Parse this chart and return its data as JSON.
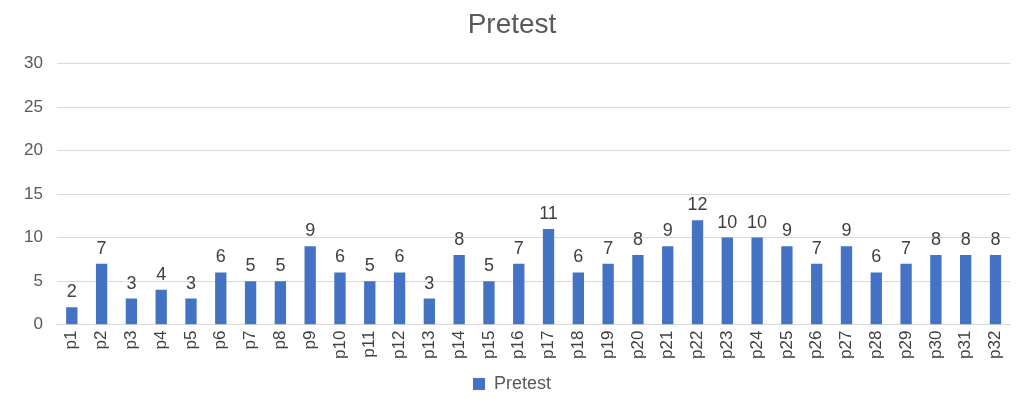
{
  "chart_data": {
    "type": "bar",
    "title": "Pretest",
    "categories": [
      "p1",
      "p2",
      "p3",
      "p4",
      "p5",
      "p6",
      "p7",
      "p8",
      "p9",
      "p10",
      "p11",
      "p12",
      "p13",
      "p14",
      "p15",
      "p16",
      "p17",
      "p18",
      "p19",
      "p20",
      "p21",
      "p22",
      "p23",
      "p24",
      "p25",
      "p26",
      "p27",
      "p28",
      "p29",
      "p30",
      "p31",
      "p32"
    ],
    "series": [
      {
        "name": "Pretest",
        "color": "#4472c4",
        "values": [
          2,
          7,
          3,
          4,
          3,
          6,
          5,
          5,
          9,
          6,
          5,
          6,
          3,
          8,
          5,
          7,
          11,
          6,
          7,
          8,
          9,
          12,
          10,
          10,
          9,
          7,
          9,
          6,
          7,
          8,
          8,
          8
        ]
      }
    ],
    "ylim": [
      0,
      30
    ],
    "yticks": [
      0,
      5,
      10,
      15,
      20,
      25,
      30
    ],
    "grid": "y",
    "legend": "bottom",
    "data_labels": true
  }
}
